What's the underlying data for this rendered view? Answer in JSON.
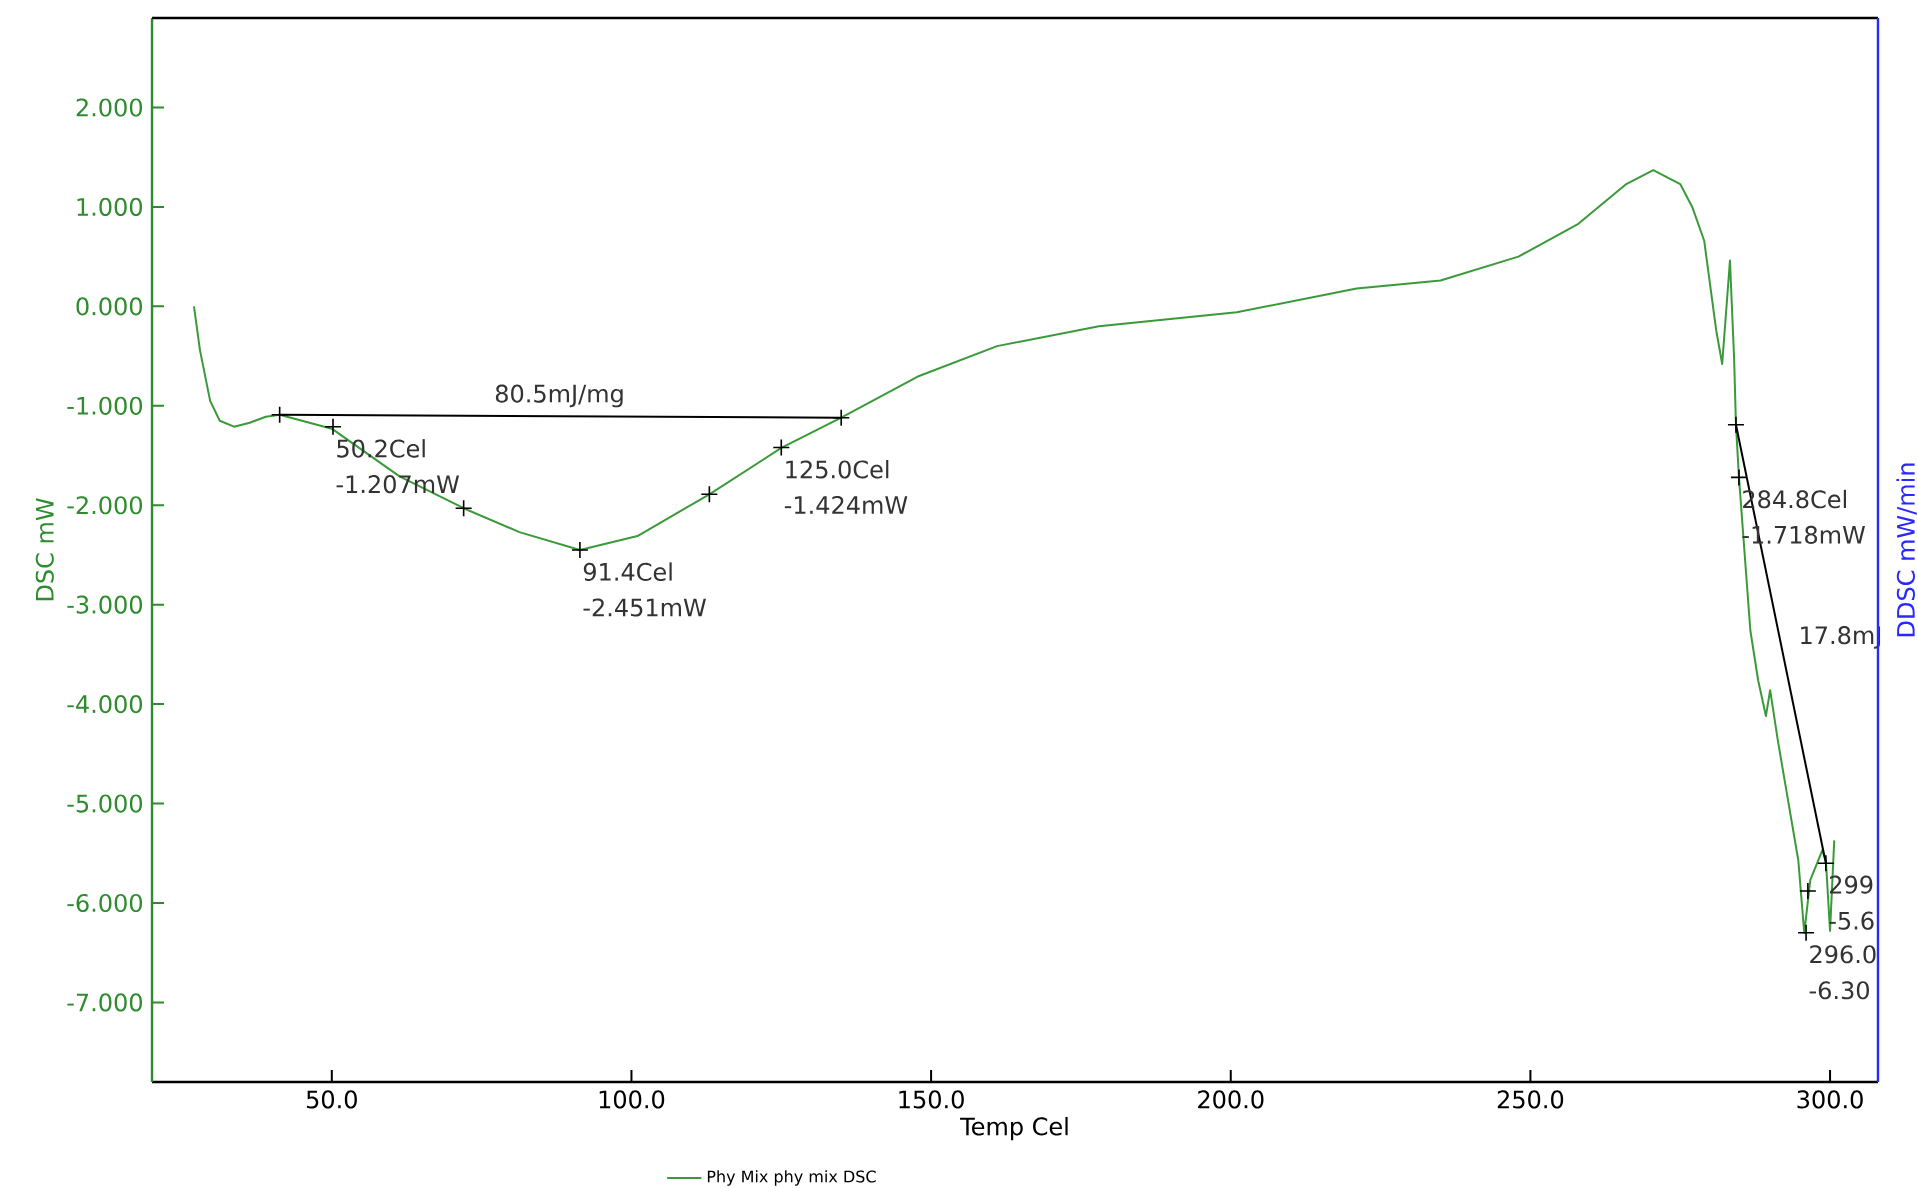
{
  "chart_data": {
    "type": "line",
    "xlabel": "Temp Cel",
    "ylabel": "DSC mW",
    "y2label": "DDSC mW/min",
    "xlim": [
      20,
      308
    ],
    "ylim": [
      -7.8,
      2.9
    ],
    "xticks": [
      {
        "value": 50,
        "label": "50.0"
      },
      {
        "value": 100,
        "label": "100.0"
      },
      {
        "value": 150,
        "label": "150.0"
      },
      {
        "value": 200,
        "label": "200.0"
      },
      {
        "value": 250,
        "label": "250.0"
      },
      {
        "value": 300,
        "label": "300.0"
      }
    ],
    "yticks": [
      {
        "value": 2,
        "label": "2.000"
      },
      {
        "value": 1,
        "label": "1.000"
      },
      {
        "value": 0,
        "label": "0.000"
      },
      {
        "value": -1,
        "label": "-1.000"
      },
      {
        "value": -2,
        "label": "-2.000"
      },
      {
        "value": -3,
        "label": "-3.000"
      },
      {
        "value": -4,
        "label": "-4.000"
      },
      {
        "value": -5,
        "label": "-5.000"
      },
      {
        "value": -6,
        "label": "-6.000"
      },
      {
        "value": -7,
        "label": "-7.000"
      }
    ],
    "legend": "bottom",
    "series": [
      {
        "name": "Phy Mix phy mix  DSC",
        "color": "#3a9a3a",
        "x": [
          27,
          28,
          29.7,
          31.3,
          33.7,
          36.3,
          39,
          41.3,
          50,
          61.3,
          72,
          81.3,
          91.4,
          101,
          113,
          125,
          135,
          148,
          161,
          178,
          201,
          221,
          235,
          248,
          258,
          266,
          270.5,
          275,
          277,
          279,
          281,
          282,
          283.3,
          284,
          284.3,
          284.8,
          286.7,
          288,
          289.3,
          290,
          291.3,
          293,
          294.7,
          295.7,
          296.7,
          298.7,
          299.3,
          300,
          300.7
        ],
        "values": [
          0.0,
          -0.44,
          -0.95,
          -1.15,
          -1.21,
          -1.17,
          -1.11,
          -1.09,
          -1.23,
          -1.71,
          -2.03,
          -2.27,
          -2.451,
          -2.31,
          -1.89,
          -1.424,
          -1.12,
          -0.7,
          -0.4,
          -0.2,
          -0.06,
          0.18,
          0.26,
          0.5,
          0.83,
          1.23,
          1.37,
          1.23,
          1.0,
          0.66,
          -0.24,
          -0.58,
          0.46,
          -0.54,
          -1.19,
          -1.72,
          -3.26,
          -3.76,
          -4.12,
          -3.86,
          -4.37,
          -4.97,
          -5.57,
          -6.3,
          -5.77,
          -5.47,
          -5.57,
          -6.28,
          -5.37
        ]
      },
      {
        "type": "line",
        "color": "#000000",
        "marker": "cross",
        "x": [
          41.3,
          135
        ],
        "values": [
          -1.09,
          -1.12
        ]
      },
      {
        "type": "line",
        "color": "#000000",
        "marker": "cross",
        "x": [
          284.3,
          299.3
        ],
        "values": [
          -1.19,
          -5.6
        ]
      },
      {
        "type": "scatter",
        "color": "#000000",
        "marker": "cross",
        "x": [
          50.2,
          72,
          91.4,
          113,
          125.0,
          284.8,
          296.0,
          296.3
        ],
        "values": [
          -1.21,
          -2.03,
          -2.45,
          -1.89,
          -1.42,
          -1.72,
          -6.3,
          -5.88
        ]
      }
    ],
    "annotations": [
      {
        "text": "80.5mJ/mg",
        "x": 88,
        "y": -1.1
      },
      {
        "text": "50.2Cel",
        "x": 50.2,
        "y": -1.21
      },
      {
        "text": "-1.207mW",
        "x": 50.2,
        "y": -1.21
      },
      {
        "text": "91.4Cel",
        "x": 91.4,
        "y": -2.45
      },
      {
        "text": "-2.451mW",
        "x": 91.4,
        "y": -2.45
      },
      {
        "text": "125.0Cel",
        "x": 125.0,
        "y": -1.42
      },
      {
        "text": "-1.424mW",
        "x": 125.0,
        "y": -1.42
      },
      {
        "text": "284.8Cel",
        "x": 284.8,
        "y": -1.72
      },
      {
        "text": "-1.718mW",
        "x": 284.8,
        "y": -1.72
      },
      {
        "text": "17.8mJ",
        "x": 292,
        "y": -3.45
      },
      {
        "text": "299",
        "x": 299.3,
        "y": -5.6
      },
      {
        "text": "-5.6",
        "x": 299.3,
        "y": -5.6
      },
      {
        "text": "296.0",
        "x": 296.0,
        "y": -6.3
      },
      {
        "text": "-6.30",
        "x": 296.0,
        "y": -6.3
      }
    ]
  }
}
